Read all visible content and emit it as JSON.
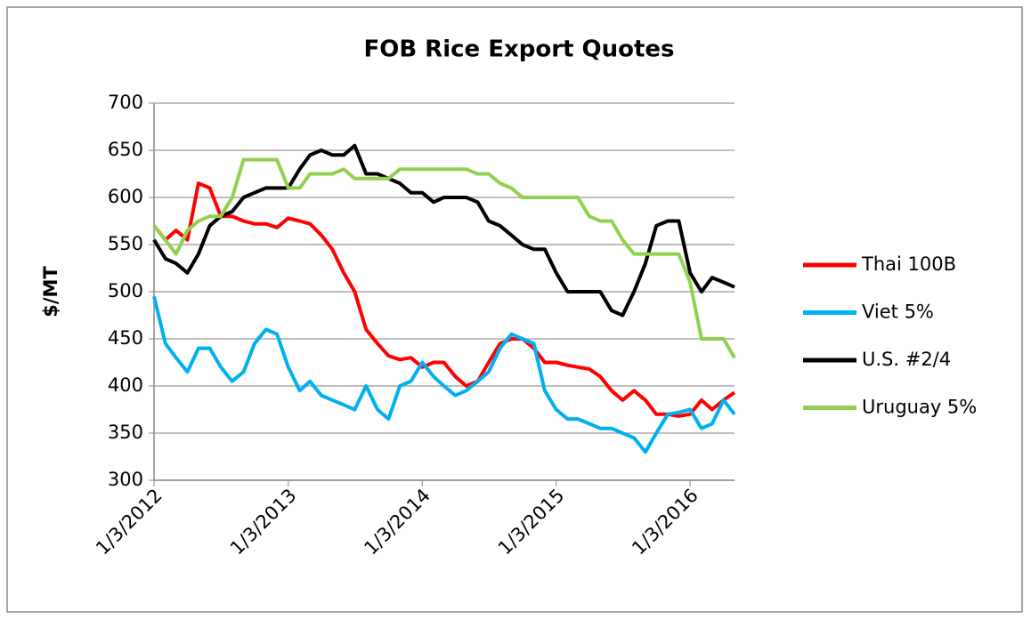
{
  "chart_data": {
    "type": "line",
    "title": "FOB Rice Export Quotes",
    "y_label": "$/MT",
    "x": [
      "1/3/2012",
      "2/3/2012",
      "3/3/2012",
      "4/3/2012",
      "5/3/2012",
      "6/3/2012",
      "7/3/2012",
      "8/3/2012",
      "9/3/2012",
      "10/3/2012",
      "11/3/2012",
      "12/3/2012",
      "1/3/2013",
      "2/3/2013",
      "3/3/2013",
      "4/3/2013",
      "5/3/2013",
      "6/3/2013",
      "7/3/2013",
      "8/3/2013",
      "9/3/2013",
      "10/3/2013",
      "11/3/2013",
      "12/3/2013",
      "1/3/2014",
      "2/3/2014",
      "3/3/2014",
      "4/3/2014",
      "5/3/2014",
      "6/3/2014",
      "7/3/2014",
      "8/3/2014",
      "9/3/2014",
      "10/3/2014",
      "11/3/2014",
      "12/3/2014",
      "1/3/2015",
      "2/3/2015",
      "3/3/2015",
      "4/3/2015",
      "5/3/2015",
      "6/3/2015",
      "7/3/2015",
      "8/3/2015",
      "9/3/2015",
      "10/3/2015",
      "11/3/2015",
      "12/3/2015",
      "1/3/2016",
      "2/3/2016",
      "3/3/2016",
      "4/3/2016",
      "5/3/2016"
    ],
    "series": [
      {
        "name": "Thai 100B",
        "color": "#ff0000",
        "values": [
          570,
          555,
          565,
          555,
          615,
          610,
          580,
          580,
          575,
          572,
          572,
          568,
          578,
          575,
          572,
          560,
          545,
          520,
          500,
          460,
          445,
          432,
          428,
          430,
          420,
          425,
          425,
          410,
          400,
          405,
          425,
          445,
          450,
          450,
          440,
          425,
          425,
          422,
          420,
          418,
          410,
          395,
          385,
          395,
          385,
          370,
          370,
          368,
          370,
          385,
          375,
          385,
          393
        ]
      },
      {
        "name": "Viet 5%",
        "color": "#00b0f0",
        "values": [
          495,
          445,
          430,
          415,
          440,
          440,
          420,
          405,
          415,
          445,
          460,
          455,
          420,
          395,
          405,
          390,
          385,
          380,
          375,
          400,
          375,
          365,
          400,
          405,
          425,
          410,
          400,
          390,
          395,
          405,
          415,
          440,
          455,
          450,
          445,
          395,
          375,
          365,
          365,
          360,
          355,
          355,
          350,
          345,
          330,
          350,
          370,
          372,
          375,
          355,
          360,
          385,
          370
        ]
      },
      {
        "name": "U.S. #2/4",
        "color": "#000000",
        "values": [
          555,
          535,
          530,
          520,
          540,
          570,
          580,
          585,
          600,
          605,
          610,
          610,
          610,
          630,
          645,
          650,
          645,
          645,
          655,
          625,
          625,
          620,
          615,
          605,
          605,
          595,
          600,
          600,
          600,
          595,
          575,
          570,
          560,
          550,
          545,
          545,
          520,
          500,
          500,
          500,
          500,
          480,
          475,
          500,
          530,
          570,
          575,
          575,
          520,
          500,
          515,
          510,
          505
        ]
      },
      {
        "name": "Uruguay 5%",
        "color": "#92d050",
        "values": [
          570,
          555,
          540,
          565,
          575,
          580,
          580,
          600,
          640,
          640,
          640,
          640,
          610,
          610,
          625,
          625,
          625,
          630,
          620,
          620,
          620,
          620,
          630,
          630,
          630,
          630,
          630,
          630,
          630,
          625,
          625,
          615,
          610,
          600,
          600,
          600,
          600,
          600,
          600,
          580,
          575,
          575,
          555,
          540,
          540,
          540,
          540,
          540,
          510,
          450,
          450,
          450,
          430
        ]
      }
    ],
    "xlim": [
      "1/3/2012",
      "5/3/2016"
    ],
    "xticks": [
      "1/3/2012",
      "1/3/2013",
      "1/3/2014",
      "1/3/2015",
      "1/3/2016"
    ],
    "ylim": [
      300,
      700
    ],
    "yticks": [
      300,
      350,
      400,
      450,
      500,
      550,
      600,
      650,
      700
    ],
    "grid": true,
    "legend": "right"
  }
}
